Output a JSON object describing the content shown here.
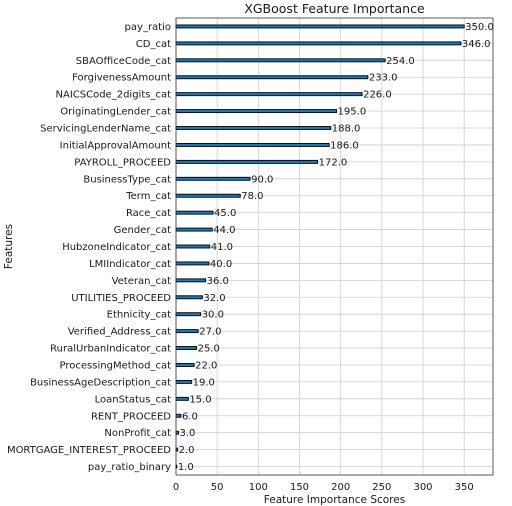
{
  "chart_data": {
    "type": "bar",
    "orientation": "horizontal",
    "title": "XGBoost Feature Importance",
    "xlabel": "Feature Importance Scores",
    "ylabel": "Features",
    "xlim": [
      0,
      385
    ],
    "xticks": [
      0,
      50,
      100,
      150,
      200,
      250,
      300,
      350
    ],
    "grid": true,
    "categories": [
      "pay_ratio",
      "CD_cat",
      "SBAOfficeCode_cat",
      "ForgivenessAmount",
      "NAICSCode_2digits_cat",
      "OriginatingLender_cat",
      "ServicingLenderName_cat",
      "InitialApprovalAmount",
      "PAYROLL_PROCEED",
      "BusinessType_cat",
      "Term_cat",
      "Race_cat",
      "Gender_cat",
      "HubzoneIndicator_cat",
      "LMIIndicator_cat",
      "Veteran_cat",
      "UTILITIES_PROCEED",
      "Ethnicity_cat",
      "Verified_Address_cat",
      "RuralUrbanIndicator_cat",
      "ProcessingMethod_cat",
      "BusinessAgeDescription_cat",
      "LoanStatus_cat",
      "RENT_PROCEED",
      "NonProfit_cat",
      "MORTGAGE_INTEREST_PROCEED",
      "pay_ratio_binary"
    ],
    "values": [
      350.0,
      346.0,
      254.0,
      233.0,
      226.0,
      195.0,
      188.0,
      186.0,
      172.0,
      90.0,
      78.0,
      45.0,
      44.0,
      41.0,
      40.0,
      36.0,
      32.0,
      30.0,
      27.0,
      25.0,
      22.0,
      19.0,
      15.0,
      6.0,
      3.0,
      2.0,
      1.0
    ],
    "value_labels": [
      "350.0",
      "346.0",
      "254.0",
      "233.0",
      "226.0",
      "195.0",
      "188.0",
      "186.0",
      "172.0",
      "90.0",
      "78.0",
      "45.0",
      "44.0",
      "41.0",
      "40.0",
      "36.0",
      "32.0",
      "30.0",
      "27.0",
      "25.0",
      "22.0",
      "19.0",
      "15.0",
      "6.0",
      "3.0",
      "2.0",
      "1.0"
    ],
    "bar_color": "#1f77b4"
  }
}
